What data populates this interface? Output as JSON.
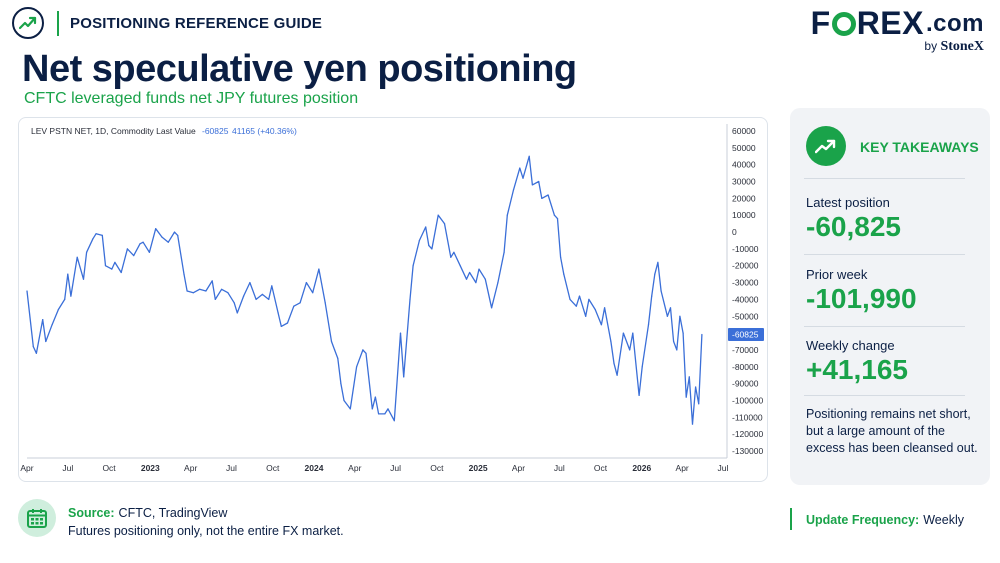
{
  "header": {
    "guide_label": "POSITIONING REFERENCE GUIDE",
    "icon": "trend-up-icon"
  },
  "logo": {
    "brand_fx": "F",
    "brand_rest": "REX",
    "brand_com": ".com",
    "byline": "by",
    "byline_brand": "StoneX"
  },
  "title": "Net speculative yen positioning",
  "subtitle": "CFTC leveraged funds net JPY futures position",
  "chart_data": {
    "type": "line",
    "legend_text": "LEV PSTN NET, 1D, Commodity Last Value",
    "legend_value": "-60825",
    "legend_change": "41165 (+40.36%)",
    "last_value_label": "-60825",
    "ylim": [
      -130000,
      60000
    ],
    "y_ticks": [
      60000,
      50000,
      40000,
      30000,
      20000,
      10000,
      0,
      -10000,
      -20000,
      -30000,
      -40000,
      -50000,
      -60000,
      -70000,
      -80000,
      -90000,
      -100000,
      -110000,
      -120000,
      -130000
    ],
    "y_tick_labels": [
      "60000",
      "50000",
      "40000",
      "30000",
      "20000",
      "10000",
      "0",
      "-10000",
      "-20000",
      "-30000",
      "-40000",
      "-50000",
      "-60000",
      "-70000",
      "-80000",
      "-90000",
      "-100000",
      "-110000",
      "-120000",
      "-130000"
    ],
    "xlim": [
      "2022-04-01",
      "2026-07-10"
    ],
    "x_ticks": [
      {
        "date": "2022-04-01",
        "label": "Apr",
        "bold": false
      },
      {
        "date": "2022-07-01",
        "label": "Jul",
        "bold": false
      },
      {
        "date": "2022-10-01",
        "label": "Oct",
        "bold": false
      },
      {
        "date": "2023-01-01",
        "label": "2023",
        "bold": true
      },
      {
        "date": "2023-04-01",
        "label": "Apr",
        "bold": false
      },
      {
        "date": "2023-07-01",
        "label": "Jul",
        "bold": false
      },
      {
        "date": "2023-10-01",
        "label": "Oct",
        "bold": false
      },
      {
        "date": "2024-01-01",
        "label": "2024",
        "bold": true
      },
      {
        "date": "2024-04-01",
        "label": "Apr",
        "bold": false
      },
      {
        "date": "2024-07-01",
        "label": "Jul",
        "bold": false
      },
      {
        "date": "2024-10-01",
        "label": "Oct",
        "bold": false
      },
      {
        "date": "2025-01-01",
        "label": "2025",
        "bold": true
      },
      {
        "date": "2025-04-01",
        "label": "Apr",
        "bold": false
      },
      {
        "date": "2025-07-01",
        "label": "Jul",
        "bold": false
      },
      {
        "date": "2025-10-01",
        "label": "Oct",
        "bold": false
      },
      {
        "date": "2026-01-01",
        "label": "2026",
        "bold": true
      },
      {
        "date": "2026-04-01",
        "label": "Apr",
        "bold": false
      },
      {
        "date": "2026-07-01",
        "label": "Jul",
        "bold": false
      }
    ],
    "series": [
      {
        "color": "#3b6fd8",
        "points": [
          [
            "2022-04-01",
            -35000
          ],
          [
            "2022-04-15",
            -68000
          ],
          [
            "2022-04-22",
            -72000
          ],
          [
            "2022-05-06",
            -52000
          ],
          [
            "2022-05-13",
            -65000
          ],
          [
            "2022-05-27",
            -55000
          ],
          [
            "2022-06-10",
            -46000
          ],
          [
            "2022-06-24",
            -40000
          ],
          [
            "2022-07-01",
            -25000
          ],
          [
            "2022-07-08",
            -38000
          ],
          [
            "2022-07-22",
            -15000
          ],
          [
            "2022-08-05",
            -28000
          ],
          [
            "2022-08-12",
            -12000
          ],
          [
            "2022-08-26",
            -4000
          ],
          [
            "2022-09-02",
            -1000
          ],
          [
            "2022-09-16",
            -2000
          ],
          [
            "2022-09-23",
            -20000
          ],
          [
            "2022-10-07",
            -22000
          ],
          [
            "2022-10-14",
            -18000
          ],
          [
            "2022-10-28",
            -24000
          ],
          [
            "2022-11-11",
            -10000
          ],
          [
            "2022-11-25",
            -14000
          ],
          [
            "2022-12-09",
            -7000
          ],
          [
            "2022-12-16",
            -6000
          ],
          [
            "2022-12-30",
            -12000
          ],
          [
            "2023-01-13",
            2000
          ],
          [
            "2023-01-27",
            -3000
          ],
          [
            "2023-02-10",
            -6000
          ],
          [
            "2023-02-24",
            0
          ],
          [
            "2023-03-03",
            -2000
          ],
          [
            "2023-03-17",
            -25000
          ],
          [
            "2023-03-24",
            -35000
          ],
          [
            "2023-04-07",
            -36000
          ],
          [
            "2023-04-21",
            -34000
          ],
          [
            "2023-05-05",
            -35000
          ],
          [
            "2023-05-19",
            -29000
          ],
          [
            "2023-05-26",
            -40000
          ],
          [
            "2023-06-09",
            -34000
          ],
          [
            "2023-06-23",
            -36000
          ],
          [
            "2023-07-07",
            -42000
          ],
          [
            "2023-07-14",
            -48000
          ],
          [
            "2023-07-28",
            -38000
          ],
          [
            "2023-08-11",
            -30000
          ],
          [
            "2023-08-25",
            -40000
          ],
          [
            "2023-09-08",
            -37000
          ],
          [
            "2023-09-22",
            -40000
          ],
          [
            "2023-09-29",
            -32000
          ],
          [
            "2023-10-13",
            -48000
          ],
          [
            "2023-10-20",
            -56000
          ],
          [
            "2023-11-03",
            -54000
          ],
          [
            "2023-11-17",
            -44000
          ],
          [
            "2023-12-01",
            -42000
          ],
          [
            "2023-12-15",
            -30000
          ],
          [
            "2023-12-29",
            -36000
          ],
          [
            "2024-01-12",
            -22000
          ],
          [
            "2024-01-26",
            -42000
          ],
          [
            "2024-02-09",
            -65000
          ],
          [
            "2024-02-16",
            -70000
          ],
          [
            "2024-02-23",
            -75000
          ],
          [
            "2024-03-01",
            -90000
          ],
          [
            "2024-03-08",
            -100000
          ],
          [
            "2024-03-22",
            -105000
          ],
          [
            "2024-04-05",
            -80000
          ],
          [
            "2024-04-19",
            -70000
          ],
          [
            "2024-04-26",
            -72000
          ],
          [
            "2024-05-10",
            -105000
          ],
          [
            "2024-05-17",
            -98000
          ],
          [
            "2024-05-24",
            -108000
          ],
          [
            "2024-06-07",
            -108000
          ],
          [
            "2024-06-14",
            -105000
          ],
          [
            "2024-06-28",
            -112000
          ],
          [
            "2024-07-12",
            -60000
          ],
          [
            "2024-07-19",
            -86000
          ],
          [
            "2024-08-02",
            -40000
          ],
          [
            "2024-08-09",
            -20000
          ],
          [
            "2024-08-23",
            -5000
          ],
          [
            "2024-09-06",
            3000
          ],
          [
            "2024-09-13",
            -8000
          ],
          [
            "2024-09-20",
            -10000
          ],
          [
            "2024-10-04",
            10000
          ],
          [
            "2024-10-18",
            5000
          ],
          [
            "2024-11-01",
            -15000
          ],
          [
            "2024-11-08",
            -12000
          ],
          [
            "2024-11-22",
            -20000
          ],
          [
            "2024-12-06",
            -28000
          ],
          [
            "2024-12-13",
            -24000
          ],
          [
            "2024-12-27",
            -30000
          ],
          [
            "2025-01-03",
            -22000
          ],
          [
            "2025-01-17",
            -28000
          ],
          [
            "2025-01-31",
            -45000
          ],
          [
            "2025-02-14",
            -30000
          ],
          [
            "2025-02-28",
            -12000
          ],
          [
            "2025-03-07",
            10000
          ],
          [
            "2025-03-21",
            25000
          ],
          [
            "2025-04-04",
            38000
          ],
          [
            "2025-04-11",
            32000
          ],
          [
            "2025-04-25",
            45000
          ],
          [
            "2025-05-02",
            28000
          ],
          [
            "2025-05-16",
            30000
          ],
          [
            "2025-05-23",
            20000
          ],
          [
            "2025-06-06",
            22000
          ],
          [
            "2025-06-20",
            10000
          ],
          [
            "2025-06-27",
            8000
          ],
          [
            "2025-07-04",
            -15000
          ],
          [
            "2025-07-11",
            -25000
          ],
          [
            "2025-07-25",
            -40000
          ],
          [
            "2025-08-08",
            -44000
          ],
          [
            "2025-08-15",
            -38000
          ],
          [
            "2025-08-29",
            -50000
          ],
          [
            "2025-09-05",
            -40000
          ],
          [
            "2025-09-19",
            -46000
          ],
          [
            "2025-10-03",
            -55000
          ],
          [
            "2025-10-10",
            -45000
          ],
          [
            "2025-10-24",
            -65000
          ],
          [
            "2025-10-31",
            -78000
          ],
          [
            "2025-11-07",
            -85000
          ],
          [
            "2025-11-21",
            -60000
          ],
          [
            "2025-12-05",
            -70000
          ],
          [
            "2025-12-12",
            -60000
          ],
          [
            "2025-12-26",
            -97000
          ],
          [
            "2026-01-02",
            -80000
          ],
          [
            "2026-01-16",
            -55000
          ],
          [
            "2026-01-23",
            -38000
          ],
          [
            "2026-01-30",
            -25000
          ],
          [
            "2026-02-06",
            -18000
          ],
          [
            "2026-02-13",
            -35000
          ],
          [
            "2026-02-27",
            -50000
          ],
          [
            "2026-03-06",
            -45000
          ],
          [
            "2026-03-13",
            -65000
          ],
          [
            "2026-03-20",
            -70000
          ],
          [
            "2026-03-27",
            -50000
          ],
          [
            "2026-04-03",
            -60000
          ],
          [
            "2026-04-10",
            -98000
          ],
          [
            "2026-04-17",
            -86000
          ],
          [
            "2026-04-24",
            -114000
          ],
          [
            "2026-05-01",
            -92000
          ],
          [
            "2026-05-08",
            -101990
          ],
          [
            "2026-05-15",
            -60825
          ]
        ]
      }
    ]
  },
  "takeaways": {
    "heading": "KEY TAKEAWAYS",
    "icon": "trend-up-icon",
    "latest_label": "Latest position",
    "latest_value": "-60,825",
    "prior_label": "Prior week",
    "prior_value": "-101,990",
    "change_label": "Weekly change",
    "change_value": "+41,165",
    "note": "Positioning remains net short, but a large amount of the excess has been cleansed out."
  },
  "footer": {
    "source_label": "Source:",
    "source_value": "CFTC, TradingView",
    "disclaimer": "Futures positioning only, not the entire FX market.",
    "source_icon": "calendar-icon",
    "frequency_label": "Update Frequency:",
    "frequency_value": "Weekly"
  },
  "colors": {
    "brand_navy": "#0b1f44",
    "brand_green": "#1aa34a",
    "line_blue": "#3b6fd8"
  }
}
